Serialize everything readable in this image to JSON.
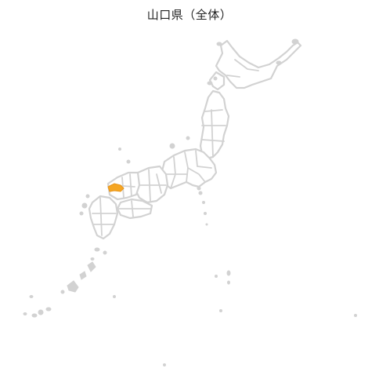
{
  "map": {
    "title": "山口県（全体）",
    "highlighted_region": "山口県",
    "colors": {
      "highlight": "#f5a623",
      "base_outline": "#d2d2d2",
      "background": "#ffffff"
    }
  }
}
